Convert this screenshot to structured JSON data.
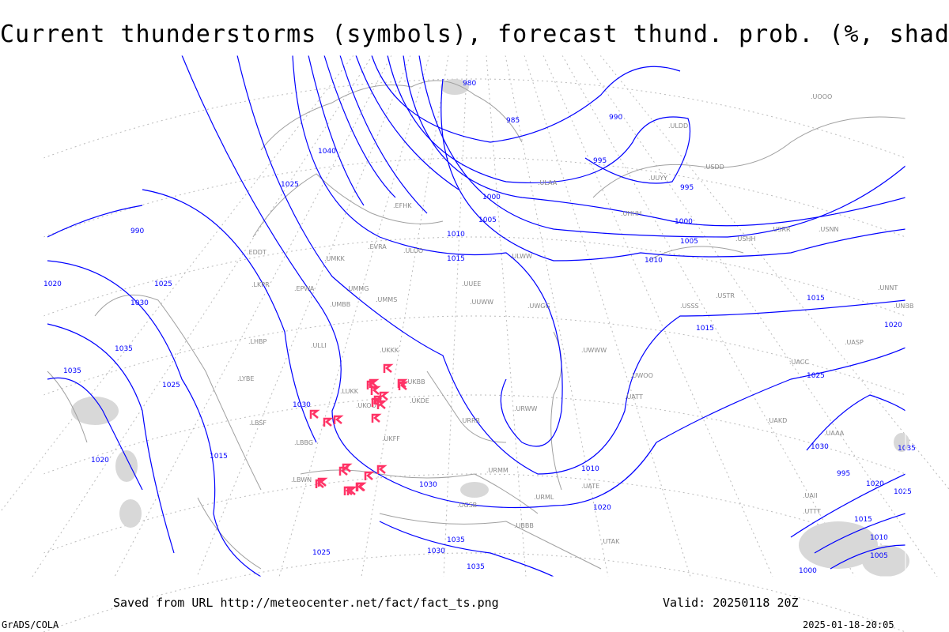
{
  "title": "Current thunderstorms (symbols), forecast thund. prob. (%, shaded)",
  "footer": {
    "saved": "Saved from URL http://meteocenter.net/fact/fact_ts.png",
    "valid": "Valid: 20250118 20Z",
    "credit": "GrADS/COLA",
    "timestamp": "2025-01-18-20:05"
  },
  "colors": {
    "isobar": "#0000ff",
    "coast": "#a0a0a0",
    "storm": "#ff3366",
    "shade": "#d8d8d8"
  },
  "isobar_labels": [
    "980",
    "985",
    "990",
    "995",
    "1000",
    "1005",
    "1010",
    "1015",
    "1020",
    "1025",
    "1030",
    "1035",
    "1040",
    "995",
    "1000",
    "1005",
    "1010",
    "1015",
    "1020",
    "1025",
    "1030",
    "1035",
    "1020",
    "1025",
    "1015",
    "1010",
    "1005",
    "1000",
    "995",
    "990",
    "1020",
    "1025",
    "1030",
    "1035",
    "1035",
    "1025",
    "1030",
    "1015",
    "1020",
    "1025",
    "1030",
    "1035",
    "1010",
    "1015"
  ],
  "stations": [
    "ULLI",
    "UMMS",
    "UMMG",
    "UMBB",
    "UKKK",
    "UKBB",
    "UKOO",
    "UKFF",
    "UKDE",
    "UUWW",
    "UUEE",
    "UWGG",
    "URRR",
    "URWW",
    "UWWW",
    "UATT",
    "UACC",
    "UAAA",
    "UASP",
    "UMKK",
    "EVRA",
    "ULOO",
    "EFHK",
    "ULAA",
    "UUYY",
    "ULWW",
    "USSS",
    "USTR",
    "UNNT",
    "UNBB",
    "USRR",
    "USNN",
    "USHH",
    "USDD",
    "ULDD",
    "UOOO",
    "UHHH",
    "LUKK",
    "LBSF",
    "LBBG",
    "LBWN",
    "UGSB",
    "UBBB",
    "UTAK",
    "UTTT",
    "UAII",
    "UATE",
    "URML",
    "URMM",
    "UWOO",
    "UAKD",
    "EPWA",
    "LKPR",
    "EDDT",
    "LHBP",
    "LYBE"
  ],
  "thunderstorm_count": 24
}
